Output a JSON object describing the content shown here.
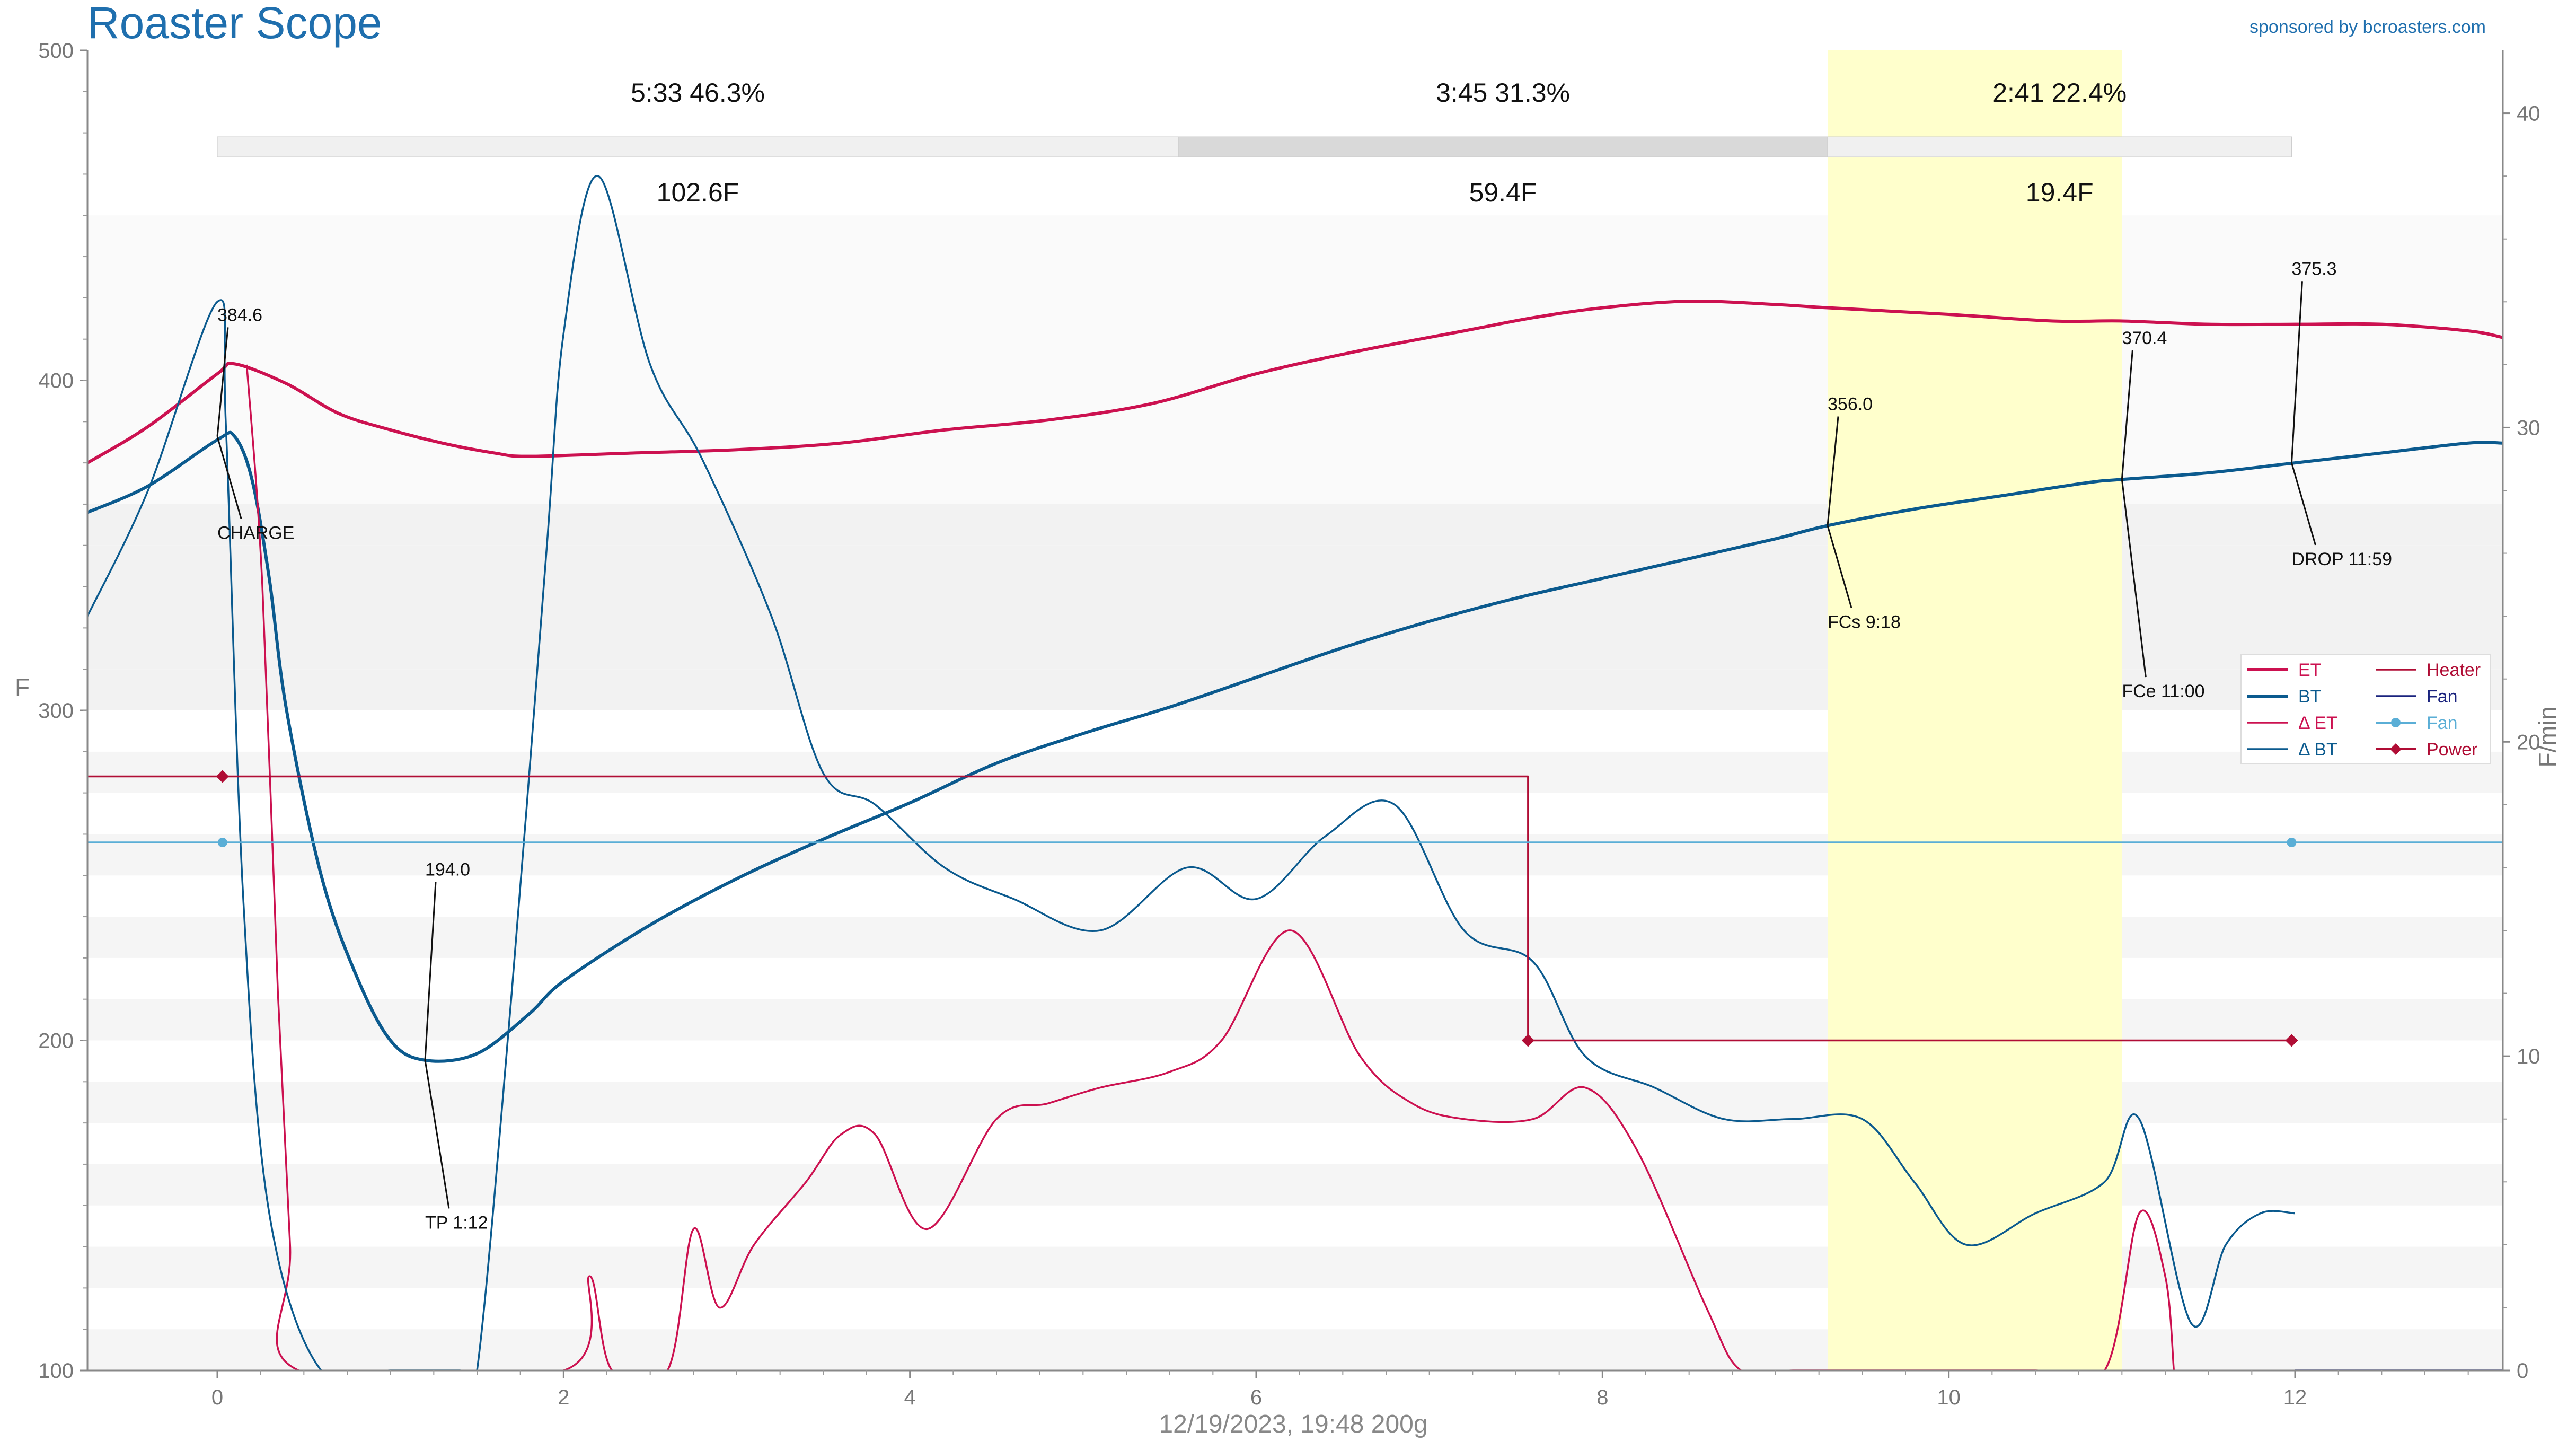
{
  "app": {
    "title": "Roaster Scope",
    "sponsor": "sponsored by bcroasters.com",
    "footer": "12/19/2023, 19:48   200g"
  },
  "colors": {
    "ET": "#cc1150",
    "BT": "#0b5a8e",
    "dET": "#cc1150",
    "dBT": "#0b5a8e",
    "Heater": "#b00d35",
    "Fan": "#1a237e",
    "FanTrace": "#5aaed6",
    "Power": "#b00d35",
    "title": "#1f6fae",
    "development_band": "#ffffcc"
  },
  "phases": [
    {
      "time_pct": "5:33  46.3%",
      "temp_rise": "102.6F",
      "start": 0.0,
      "end": 5.55
    },
    {
      "time_pct": "3:45  31.3%",
      "temp_rise": "59.4F",
      "start": 5.55,
      "end": 9.3
    },
    {
      "time_pct": "2:41  22.4%",
      "temp_rise": "19.4F",
      "start": 9.3,
      "end": 11.98
    }
  ],
  "chart_data": {
    "type": "line",
    "xlabel": "",
    "ylabel": "F",
    "y2label": "F/min",
    "xlim": [
      -0.75,
      13.2
    ],
    "ylim": [
      100,
      500
    ],
    "y2lim": [
      0,
      42
    ],
    "xticks": [
      0,
      2,
      4,
      6,
      8,
      10,
      12
    ],
    "yticks": [
      100,
      200,
      300,
      400,
      500
    ],
    "y2ticks": [
      0,
      10,
      20,
      30,
      40
    ],
    "grid": false,
    "legend_position": "right",
    "development_band": [
      9.3,
      11.0
    ],
    "series": [
      {
        "name": "ET",
        "axis": "left",
        "x": [
          -0.75,
          -0.4,
          0,
          0.1,
          0.4,
          0.7,
          1,
          1.3,
          1.6,
          1.8,
          2.4,
          3,
          3.6,
          4.2,
          4.8,
          5.4,
          6,
          6.6,
          7.2,
          7.6,
          8,
          8.5,
          9,
          9.3,
          10,
          10.6,
          11,
          11.5,
          12,
          12.5,
          13,
          13.2
        ],
        "y": [
          375,
          386,
          402,
          405,
          399,
          390,
          385,
          381,
          378,
          377,
          378,
          379,
          381,
          385,
          388,
          393,
          402,
          409,
          415,
          419,
          422,
          424,
          423,
          422,
          420,
          418,
          418,
          417,
          417,
          417,
          415,
          413
        ]
      },
      {
        "name": "BT",
        "axis": "left",
        "x": [
          -0.75,
          -0.4,
          0,
          0.1,
          0.2,
          0.3,
          0.4,
          0.6,
          0.8,
          1,
          1.2,
          1.5,
          1.8,
          2,
          2.5,
          3,
          3.5,
          4,
          4.5,
          5,
          5.5,
          6,
          6.5,
          7,
          7.5,
          8,
          8.5,
          9,
          9.3,
          9.8,
          10.3,
          10.8,
          11,
          11.5,
          12,
          12.5,
          13,
          13.2
        ],
        "y": [
          360,
          368,
          382,
          383,
          370,
          340,
          300,
          250,
          220,
          200,
          194,
          196,
          208,
          218,
          235,
          249,
          261,
          272,
          284,
          293,
          301,
          310,
          319,
          327,
          334,
          340,
          346,
          352,
          356,
          361,
          365,
          369,
          370,
          372,
          375,
          378,
          381,
          381
        ]
      },
      {
        "name": "Δ ET",
        "axis": "right",
        "x": [
          0.17,
          0.26,
          0.35,
          0.42,
          0.47,
          2,
          2.15,
          2.28,
          2.6,
          2.75,
          2.9,
          3.1,
          3.4,
          3.6,
          3.8,
          4.1,
          4.5,
          4.8,
          5.1,
          5.5,
          5.8,
          6.2,
          6.6,
          6.9,
          7.2,
          7.6,
          7.9,
          8.2,
          8.6,
          8.8,
          9.1,
          9.5,
          10,
          10.5,
          10.9,
          11.1,
          11.25,
          11.3
        ],
        "y": [
          32,
          25,
          12,
          4,
          0,
          0,
          3,
          0,
          0,
          4.5,
          2,
          4,
          6,
          7.5,
          7.5,
          4.5,
          8,
          8.5,
          9,
          9.5,
          10.5,
          14,
          10,
          8.5,
          8,
          8,
          9,
          7,
          2,
          0,
          0,
          0,
          0,
          0,
          0,
          5,
          3,
          0
        ]
      },
      {
        "name": "Δ BT",
        "axis": "right",
        "x": [
          -0.75,
          -0.4,
          0,
          0.05,
          0.15,
          0.3,
          0.6,
          1,
          1.4,
          1.5,
          1.7,
          1.9,
          2,
          2.2,
          2.5,
          2.8,
          3.2,
          3.5,
          3.8,
          4.2,
          4.6,
          5.1,
          5.6,
          6,
          6.4,
          6.8,
          7.2,
          7.6,
          7.9,
          8.3,
          8.7,
          9.1,
          9.5,
          9.8,
          10.1,
          10.5,
          10.9,
          11.1,
          11.4,
          11.6,
          11.8,
          12
        ],
        "y": [
          24,
          28,
          34,
          30,
          15,
          5,
          0,
          0,
          0,
          0,
          12,
          26,
          33,
          38,
          32,
          29,
          24,
          19,
          18,
          16,
          15,
          14,
          16,
          15,
          17,
          18,
          14,
          13,
          10,
          9,
          8,
          8,
          8,
          6,
          4,
          5,
          6,
          8,
          1.5,
          4,
          5,
          5
        ]
      },
      {
        "name": "Heater",
        "axis": "left",
        "x": [
          -0.75,
          7.57,
          7.57,
          12
        ],
        "y": [
          280,
          280,
          200,
          200
        ]
      },
      {
        "name": "Fan",
        "axis": "left",
        "x": [
          12,
          13.2
        ],
        "y": [
          100,
          100
        ]
      },
      {
        "name": "Fan",
        "axis": "left",
        "x": [
          -0.75,
          13.2
        ],
        "y": [
          260,
          260
        ]
      },
      {
        "name": "Power",
        "axis": "left",
        "x": [
          0.03,
          7.57,
          11.98
        ],
        "y": [
          280,
          200,
          200
        ]
      },
      {
        "name": "Fan",
        "axis": "left",
        "x": [
          0.03,
          11.98
        ],
        "y": [
          260,
          260
        ]
      }
    ],
    "legend": [
      {
        "label": "ET",
        "color_key": "ET",
        "style": "thick"
      },
      {
        "label": "Heater",
        "color_key": "Heater",
        "style": "thin"
      },
      {
        "label": "BT",
        "color_key": "BT",
        "style": "thick"
      },
      {
        "label": "Fan",
        "color_key": "Fan",
        "style": "thin"
      },
      {
        "label": "Δ ET",
        "color_key": "dET",
        "style": "thin"
      },
      {
        "label": "Fan",
        "color_key": "FanTrace",
        "style": "dot"
      },
      {
        "label": "Δ BT",
        "color_key": "dBT",
        "style": "thin"
      },
      {
        "label": "Power",
        "color_key": "Power",
        "style": "diamond"
      }
    ],
    "annotations": [
      {
        "value": "384.6",
        "label": "CHARGE",
        "x": 0,
        "y": 383,
        "value_at": [
          0,
          418
        ],
        "label_at": [
          0,
          352
        ]
      },
      {
        "value": "194.0",
        "label": "TP 1:12",
        "x": 1.2,
        "y": 194,
        "value_at": [
          1.2,
          250
        ],
        "label_at": [
          1.2,
          143
        ]
      },
      {
        "value": "356.0",
        "label": "FCs 9:18",
        "x": 9.3,
        "y": 356,
        "value_at": [
          9.3,
          391
        ],
        "label_at": [
          9.3,
          325
        ]
      },
      {
        "value": "370.4",
        "label": "FCe 11:00",
        "x": 11.0,
        "y": 370,
        "value_at": [
          11.0,
          411
        ],
        "label_at": [
          11.0,
          304
        ]
      },
      {
        "value": "375.3",
        "label": "DROP 11:59",
        "x": 11.98,
        "y": 375,
        "value_at": [
          11.98,
          432
        ],
        "label_at": [
          11.98,
          344
        ]
      }
    ]
  }
}
